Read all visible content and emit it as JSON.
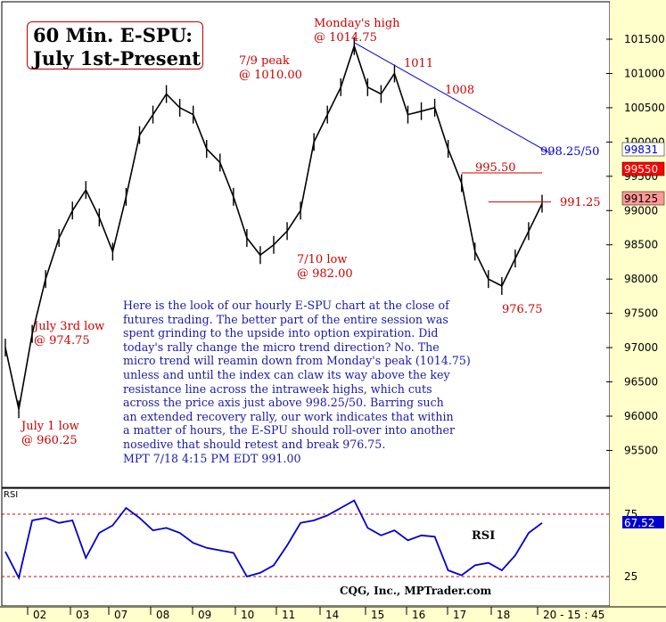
{
  "title": {
    "line1": "60 Min. E-SPU:",
    "line2": "July 1st-Present"
  },
  "commentary": [
    "Here is the look of our hourly E-SPU chart at the close of",
    "futures trading. The better part of the entire session was",
    "spent grinding to the upside into option expiration. Did",
    "today's rally change the micro trend direction? No. The",
    "micro trend will reamin down from Monday's peak (1014.75)",
    "unless and until the index can claw its way above the key",
    "resistance line across the intraweek highs, which cuts",
    "across the price axis just above 998.25/50. Barring such",
    "an extended recovery rally, our work indicates that within",
    "a matter of hours, the E-SPU should roll-over into another",
    "nosedive that should retest and break 976.75."
  ],
  "signature": "MPT  7/18 4:15 PM EDT  991.00",
  "colors": {
    "price": "#000000",
    "rsi": "#0000cc",
    "annotation": "#cc0000",
    "trendline": "#0000cc",
    "resistance": "#cc0000",
    "axis_bg": "#ffffcc"
  },
  "chart_data": [
    {
      "type": "line",
      "name": "60 Min E-SPU price",
      "ylim": [
        954,
        1020
      ],
      "y_ticks": [
        95500,
        96000,
        96500,
        97000,
        97500,
        98000,
        98500,
        99000,
        99500,
        100000,
        100500,
        101000,
        101500
      ],
      "x_ticks": [
        "02",
        "03",
        "07",
        "08",
        "09",
        "10",
        "11",
        "14",
        "15",
        "16",
        "17",
        "18",
        "20 - 15 : 45"
      ],
      "x": [
        0,
        3,
        6,
        9,
        12,
        15,
        18,
        21,
        24,
        27,
        30,
        33,
        36,
        39,
        42,
        45,
        48,
        51,
        54,
        57,
        60,
        63,
        66,
        69,
        72,
        75,
        78,
        81,
        84,
        87,
        90,
        93,
        96,
        99,
        102,
        105,
        108,
        111,
        114,
        117,
        120
      ],
      "y": [
        970.0,
        961.0,
        972.0,
        980.0,
        986.0,
        990.0,
        993.0,
        989.0,
        984.0,
        992.0,
        1001.0,
        1004.0,
        1007.0,
        1005.0,
        1004.0,
        999.0,
        997.0,
        992.0,
        986.0,
        983.5,
        985.0,
        987.0,
        990.0,
        1000.0,
        1004.0,
        1008.0,
        1014.0,
        1008.0,
        1007.0,
        1010.0,
        1004.0,
        1004.5,
        1005.0,
        999.0,
        994.0,
        984.0,
        980.0,
        979.0,
        983.0,
        987.0,
        991.0
      ],
      "ohlc_note": "values approximate, hourly closes sampled",
      "annotations": [
        {
          "text": "July 1 low",
          "value": "@ 960.25"
        },
        {
          "text": "July 3rd low",
          "value": "@ 974.75"
        },
        {
          "text": "7/9 peak",
          "value": "@ 1010.00"
        },
        {
          "text": "7/10 low",
          "value": "@ 982.00"
        },
        {
          "text": "Monday's high",
          "value": "@ 1014.75"
        },
        {
          "text": "1011"
        },
        {
          "text": "1008"
        },
        {
          "text": "995.50"
        },
        {
          "text": "976.75"
        },
        {
          "text": "998.25/50"
        },
        {
          "text": "991.25"
        }
      ],
      "axis_labels": [
        "99831",
        "99550",
        "99125"
      ],
      "lines": [
        {
          "kind": "trendline",
          "from": [
            78,
            1014.5
          ],
          "to": [
            122,
            998.3
          ]
        },
        {
          "kind": "resistance",
          "at": 995.5,
          "from_x": 102,
          "to_x": 120
        },
        {
          "kind": "resistance",
          "at": 991.25,
          "from_x": 108,
          "to_x": 122
        }
      ]
    },
    {
      "type": "line",
      "name": "RSI",
      "label": "RSI",
      "ylim": [
        10,
        90
      ],
      "y_ticks": [
        25,
        75
      ],
      "reference_lines": [
        25,
        75
      ],
      "current_value": "67.52",
      "x": [
        0,
        3,
        6,
        9,
        12,
        15,
        18,
        21,
        24,
        27,
        30,
        33,
        36,
        39,
        42,
        45,
        48,
        51,
        54,
        57,
        60,
        63,
        66,
        69,
        72,
        75,
        78,
        81,
        84,
        87,
        90,
        93,
        96,
        99,
        102,
        105,
        108,
        111,
        114,
        117,
        120
      ],
      "y": [
        45,
        24,
        70,
        72,
        68,
        70,
        40,
        60,
        66,
        80,
        72,
        62,
        64,
        60,
        52,
        48,
        46,
        44,
        25,
        28,
        34,
        50,
        68,
        70,
        74,
        80,
        86,
        64,
        58,
        62,
        54,
        58,
        57,
        30,
        26,
        34,
        36,
        30,
        42,
        60,
        68
      ]
    }
  ],
  "footer": {
    "credit": "CQG, Inc., MPTrader.com"
  },
  "rsi_panel_label": "RSI"
}
